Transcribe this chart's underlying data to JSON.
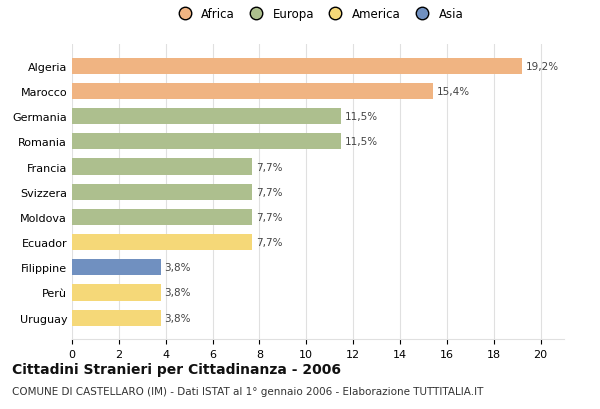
{
  "labels": [
    "Algeria",
    "Marocco",
    "Germania",
    "Romania",
    "Francia",
    "Svizzera",
    "Moldova",
    "Ecuador",
    "Filippine",
    "Perù",
    "Uruguay"
  ],
  "values": [
    19.2,
    15.4,
    11.5,
    11.5,
    7.7,
    7.7,
    7.7,
    7.7,
    3.8,
    3.8,
    3.8
  ],
  "pct_labels": [
    "19,2%",
    "15,4%",
    "11,5%",
    "11,5%",
    "7,7%",
    "7,7%",
    "7,7%",
    "7,7%",
    "3,8%",
    "3,8%",
    "3,8%"
  ],
  "continents": [
    "Africa",
    "Africa",
    "Europa",
    "Europa",
    "Europa",
    "Europa",
    "Europa",
    "America",
    "Asia",
    "America",
    "America"
  ],
  "colors": {
    "Africa": "#F0B482",
    "Europa": "#ADBF8E",
    "America": "#F5D878",
    "Asia": "#7090C0"
  },
  "legend_order": [
    "Africa",
    "Europa",
    "America",
    "Asia"
  ],
  "xlim": [
    0,
    21
  ],
  "xticks": [
    0,
    2,
    4,
    6,
    8,
    10,
    12,
    14,
    16,
    18,
    20
  ],
  "title": "Cittadini Stranieri per Cittadinanza - 2006",
  "subtitle": "COMUNE DI CASTELLARO (IM) - Dati ISTAT al 1° gennaio 2006 - Elaborazione TUTTITALIA.IT",
  "title_fontsize": 10,
  "subtitle_fontsize": 7.5,
  "bar_height": 0.65,
  "background_color": "#ffffff",
  "grid_color": "#e0e0e0",
  "label_color": "#444444",
  "pct_label_fontsize": 7.5,
  "tick_label_fontsize": 8
}
